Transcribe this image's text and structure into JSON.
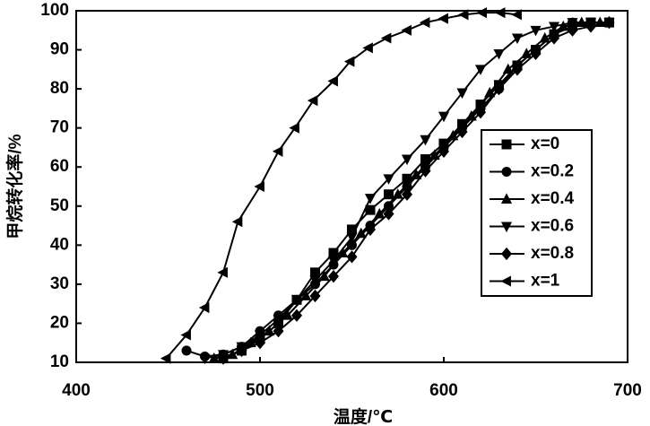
{
  "chart_data": {
    "type": "line",
    "x_label": "温度/℃",
    "y_label": "甲烷转化率/%",
    "xlim": [
      400,
      700
    ],
    "xticks": [
      400,
      500,
      600,
      700
    ],
    "ylim": [
      10,
      100
    ],
    "yticks": [
      10,
      20,
      30,
      40,
      50,
      60,
      70,
      80,
      90,
      100
    ],
    "grid": false,
    "legend": "right",
    "series": [
      {
        "name": "x=0",
        "color": "#000000",
        "marker": "square",
        "x": [
          480,
          490,
          500,
          510,
          520,
          530,
          540,
          550,
          560,
          570,
          580,
          590,
          600,
          610,
          620,
          630,
          640,
          650,
          660,
          670,
          680,
          690
        ],
        "values": [
          11,
          13,
          16,
          20,
          26,
          33,
          38,
          44,
          49,
          53,
          57,
          62,
          66,
          71,
          76,
          81,
          86,
          90,
          94,
          96,
          97,
          97
        ]
      },
      {
        "name": "x=0.2",
        "color": "#000000",
        "marker": "circle",
        "x": [
          460,
          470,
          480,
          490,
          500,
          510,
          520,
          530,
          540,
          550,
          560,
          570,
          580,
          590,
          600,
          610,
          620,
          630,
          640,
          650,
          660,
          670,
          680,
          690
        ],
        "values": [
          13,
          11.5,
          12,
          14,
          18,
          22,
          26,
          30,
          35,
          40,
          45,
          50,
          55,
          60,
          65,
          70,
          75,
          80,
          86,
          90,
          94,
          97,
          97,
          97
        ]
      },
      {
        "name": "x=0.4",
        "color": "#000000",
        "marker": "triangle-up",
        "x": [
          475,
          485,
          495,
          505,
          515,
          525,
          535,
          545,
          555,
          565,
          575,
          585,
          595,
          605,
          615,
          625,
          635,
          645,
          655,
          665,
          675,
          685
        ],
        "values": [
          11,
          12,
          15,
          18,
          22,
          27,
          32,
          38,
          43,
          48,
          53,
          58,
          63,
          68,
          73,
          79,
          85,
          89,
          93,
          96,
          97,
          97
        ]
      },
      {
        "name": "x=0.6",
        "color": "#000000",
        "marker": "triangle-down",
        "x": [
          470,
          480,
          490,
          500,
          510,
          520,
          530,
          540,
          550,
          560,
          570,
          580,
          590,
          600,
          610,
          620,
          630,
          640,
          650,
          660,
          670,
          680,
          690
        ],
        "values": [
          11,
          12,
          14,
          17,
          21,
          26,
          31,
          36,
          42,
          52,
          57,
          62,
          67,
          73,
          79,
          85,
          89,
          93,
          95,
          96,
          97,
          97,
          97
        ]
      },
      {
        "name": "x=0.8",
        "color": "#000000",
        "marker": "diamond",
        "x": [
          480,
          490,
          500,
          510,
          520,
          530,
          540,
          550,
          560,
          570,
          580,
          590,
          600,
          610,
          620,
          630,
          640,
          650,
          660,
          670,
          680,
          690
        ],
        "values": [
          11,
          13,
          15,
          18,
          22,
          27,
          32,
          37,
          44,
          48,
          53,
          59,
          64,
          69,
          74,
          80,
          85,
          89,
          93,
          95,
          96,
          97
        ]
      },
      {
        "name": "x=1",
        "color": "#000000",
        "marker": "triangle-left",
        "x": [
          449,
          460,
          470,
          480,
          488,
          500,
          510,
          519,
          529,
          540,
          549,
          559,
          569,
          580,
          590,
          600,
          611,
          621,
          631,
          640
        ],
        "values": [
          11,
          17,
          24,
          33,
          46,
          55,
          64,
          70,
          77,
          82,
          87,
          90.5,
          93,
          95,
          97,
          98,
          99,
          99.5,
          99.5,
          99
        ]
      }
    ]
  }
}
